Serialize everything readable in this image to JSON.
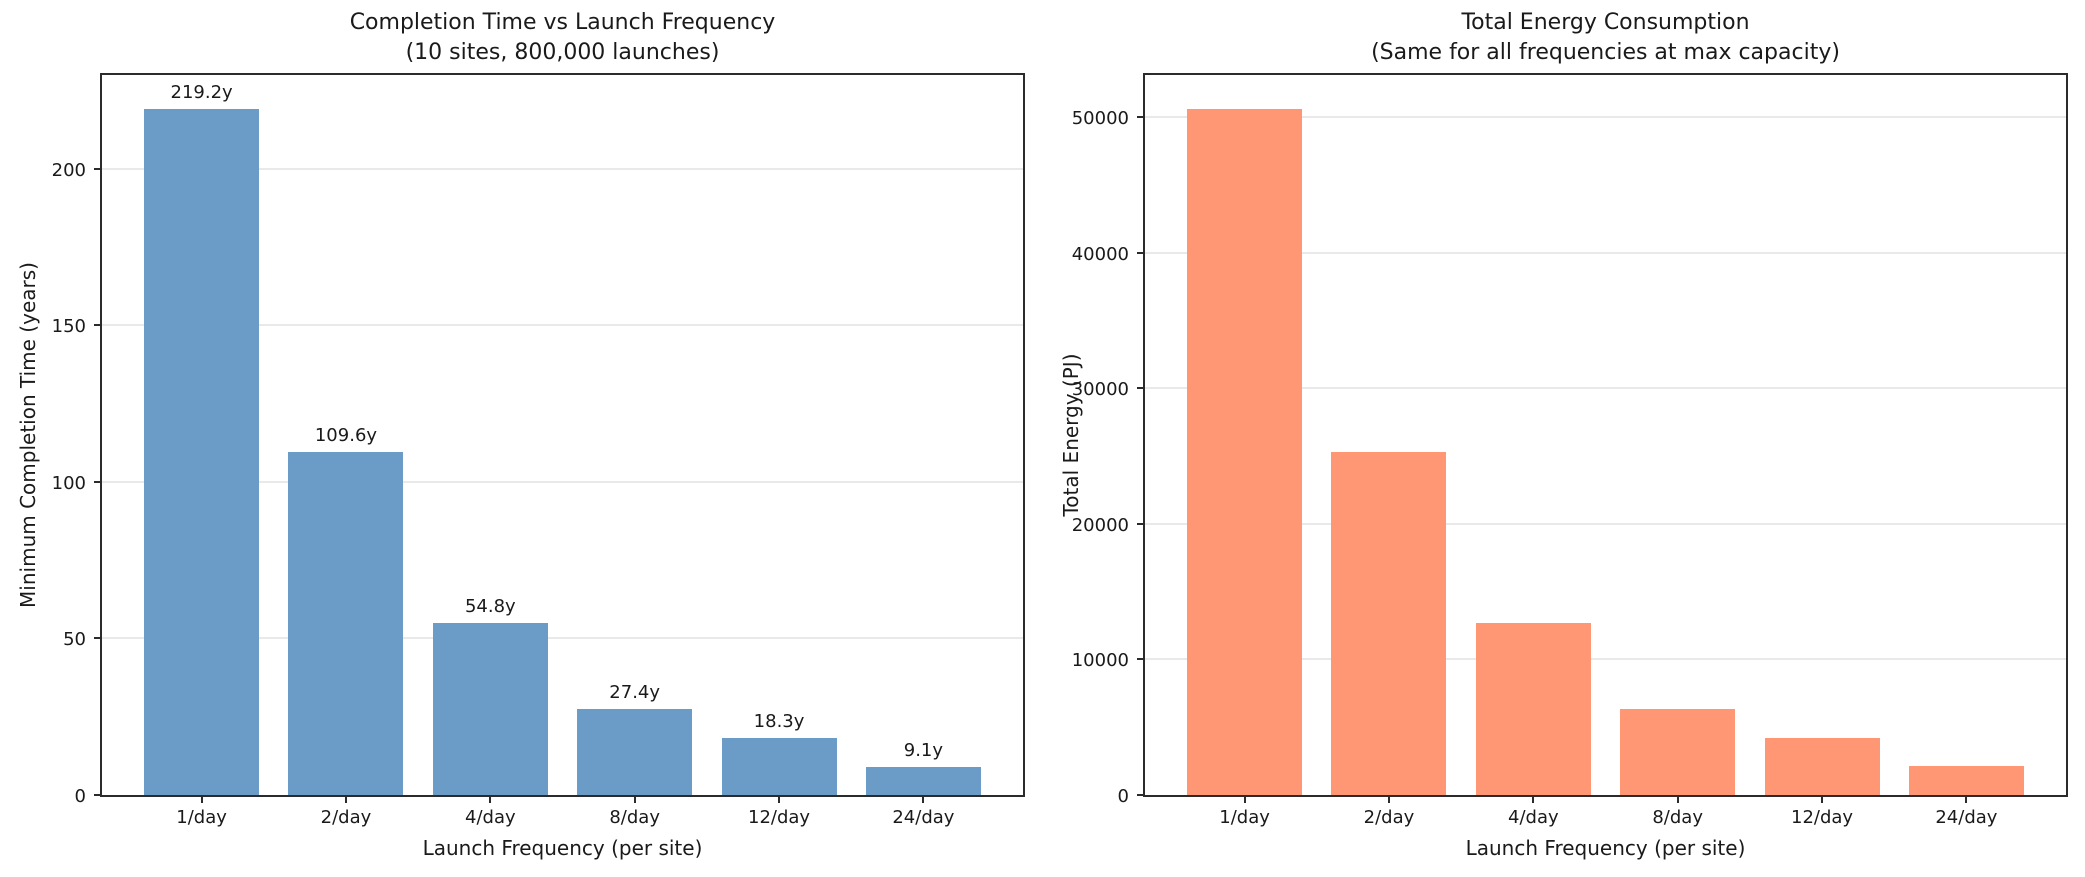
{
  "figure": {
    "background": "#ffffff",
    "text_color": "#1a1a1a",
    "spine_color": "#2b2b2b",
    "grid_color": "#e9e9e9"
  },
  "chart_data": [
    {
      "type": "bar",
      "title": "Completion Time vs Launch Frequency",
      "subtitle": "(10 sites, 800,000 launches)",
      "xlabel": "Launch Frequency (per site)",
      "ylabel": "Minimum Completion Time (years)",
      "categories": [
        "1/day",
        "2/day",
        "4/day",
        "8/day",
        "12/day",
        "24/day"
      ],
      "values": [
        219.2,
        109.6,
        54.8,
        27.4,
        18.3,
        9.1
      ],
      "bar_labels": [
        "219.2y",
        "109.6y",
        "54.8y",
        "27.4y",
        "18.3y",
        "9.1y"
      ],
      "yticks": [
        0,
        50,
        100,
        150,
        200
      ],
      "ylim": [
        0,
        230
      ],
      "bar_color": "#6a9cc7",
      "grid": true,
      "legend": null
    },
    {
      "type": "bar",
      "title": "Total Energy Consumption",
      "subtitle": "(Same for all frequencies at max capacity)",
      "xlabel": "Launch Frequency (per site)",
      "ylabel": "Total Energy (PJ)",
      "categories": [
        "1/day",
        "2/day",
        "4/day",
        "8/day",
        "12/day",
        "24/day"
      ],
      "values": [
        50600,
        25300,
        12650,
        6320,
        4210,
        2110
      ],
      "bar_labels": null,
      "yticks": [
        0,
        10000,
        20000,
        30000,
        40000,
        50000
      ],
      "ylim": [
        0,
        53100
      ],
      "bar_color": "#ff9775",
      "grid": true,
      "legend": null
    }
  ]
}
